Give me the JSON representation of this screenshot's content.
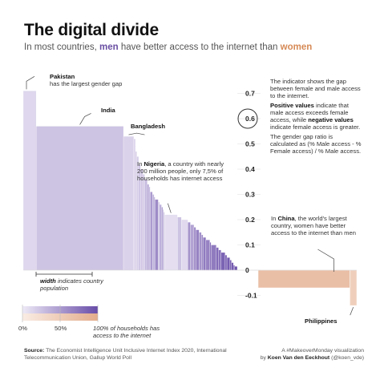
{
  "header": {
    "title": "The digital divide",
    "subtitle_pre": "In most countries, ",
    "subtitle_men": "men",
    "subtitle_mid": " have better access to the internet than ",
    "subtitle_women": "women"
  },
  "annotations": {
    "pakistan_name": "Pakistan",
    "pakistan_text": "has the largest gender gap",
    "india": "India",
    "bangladesh": "Bangladesh",
    "nigeria_pre": "In ",
    "nigeria_name": "Nigeria",
    "nigeria_post": ", a country with nearly 200 million people, only 7,5% of households has internet access",
    "china_pre": "In ",
    "china_name": "China",
    "china_post": ", the world's largest country, women have better access to the internet than men",
    "philippines": "Philippines",
    "width_bold": "width",
    "width_rest": " indicates country population"
  },
  "explain": {
    "p1": "The indicator shows the gap between female and male access to the internet.",
    "pos_label": "Positive values",
    "p2": " indicate that male access exceeds female access, while ",
    "neg_label": "negative values",
    "p3": " indicate female access is greater.",
    "p4": "The gender gap ratio is calculated as (% Male access - % Female access) / % Male access.",
    "example_value": "0.6"
  },
  "legend": {
    "label_0": "0%",
    "label_50": "50%",
    "label_100": "100% of households has access to the internet"
  },
  "footer": {
    "source_label": "Source:",
    "source_text": " The Economist Intelligence Unit Inclusive Internet Index 2020, International Telecommunication Union, Gallup World Poll",
    "credit_line1": "A #MakeoverMonday visualization",
    "credit_line2_pre": "by ",
    "credit_name": "Koen Van den Eeckhout",
    "credit_handle": " (@koen_vde)"
  },
  "colors": {
    "men": "#6a4fa3",
    "women": "#d68a56",
    "neg_fill": "#e8b596",
    "text": "#333333"
  },
  "chart_data": {
    "type": "bar",
    "encoding": "variable-width bars: height = gender gap ratio, width = population, color = % of households with internet access",
    "y_ticks": [
      "0.7",
      "0.6",
      "0.5",
      "0.4",
      "0.3",
      "0.2",
      "0.1",
      "0",
      "-0.1"
    ],
    "ylim": [
      -0.14,
      0.74
    ],
    "named_countries": [
      {
        "name": "Pakistan",
        "gap": 0.71,
        "population_m": 200,
        "access": 0.12
      },
      {
        "name": "India",
        "gap": 0.57,
        "population_m": 1350,
        "access": 0.25
      },
      {
        "name": "Bangladesh",
        "gap": 0.53,
        "population_m": 160,
        "access": 0.15
      },
      {
        "name": "Nigeria",
        "gap": 0.22,
        "population_m": 200,
        "access": 0.075
      },
      {
        "name": "China",
        "gap": -0.07,
        "population_m": 1400,
        "access": 0.7
      },
      {
        "name": "Philippines",
        "gap": -0.14,
        "population_m": 105,
        "access": 0.45
      }
    ],
    "other_countries": [
      {
        "gap": 0.52,
        "population_m": 25,
        "access": 0.15
      },
      {
        "gap": 0.47,
        "population_m": 20,
        "access": 0.2
      },
      {
        "gap": 0.45,
        "population_m": 30,
        "access": 0.18
      },
      {
        "gap": 0.42,
        "population_m": 28,
        "access": 0.25
      },
      {
        "gap": 0.4,
        "population_m": 35,
        "access": 0.22
      },
      {
        "gap": 0.38,
        "population_m": 30,
        "access": 0.2
      },
      {
        "gap": 0.36,
        "population_m": 40,
        "access": 0.3
      },
      {
        "gap": 0.34,
        "population_m": 25,
        "access": 0.45
      },
      {
        "gap": 0.33,
        "population_m": 20,
        "access": 0.3
      },
      {
        "gap": 0.31,
        "population_m": 35,
        "access": 0.5
      },
      {
        "gap": 0.3,
        "population_m": 25,
        "access": 0.35
      },
      {
        "gap": 0.29,
        "population_m": 15,
        "access": 0.55
      },
      {
        "gap": 0.28,
        "population_m": 50,
        "access": 0.6
      },
      {
        "gap": 0.27,
        "population_m": 20,
        "access": 0.25
      },
      {
        "gap": 0.26,
        "population_m": 30,
        "access": 0.4
      },
      {
        "gap": 0.25,
        "population_m": 20,
        "access": 0.5
      },
      {
        "gap": 0.24,
        "population_m": 15,
        "access": 0.3
      },
      {
        "gap": 0.23,
        "population_m": 12,
        "access": 0.45
      },
      {
        "gap": 0.21,
        "population_m": 60,
        "access": 0.25
      },
      {
        "gap": 0.2,
        "population_m": 100,
        "access": 0.1
      },
      {
        "gap": 0.19,
        "population_m": 40,
        "access": 0.55
      },
      {
        "gap": 0.18,
        "population_m": 55,
        "access": 0.45
      },
      {
        "gap": 0.17,
        "population_m": 30,
        "access": 0.6
      },
      {
        "gap": 0.16,
        "population_m": 50,
        "access": 0.65
      },
      {
        "gap": 0.15,
        "population_m": 35,
        "access": 0.55
      },
      {
        "gap": 0.14,
        "population_m": 25,
        "access": 0.6
      },
      {
        "gap": 0.13,
        "population_m": 45,
        "access": 0.7
      },
      {
        "gap": 0.12,
        "population_m": 60,
        "access": 0.65
      },
      {
        "gap": 0.11,
        "population_m": 20,
        "access": 0.75
      },
      {
        "gap": 0.1,
        "population_m": 80,
        "access": 0.7
      },
      {
        "gap": 0.09,
        "population_m": 35,
        "access": 0.8
      },
      {
        "gap": 0.08,
        "population_m": 40,
        "access": 0.75
      },
      {
        "gap": 0.07,
        "population_m": 60,
        "access": 0.85
      },
      {
        "gap": 0.06,
        "population_m": 30,
        "access": 0.8
      },
      {
        "gap": 0.05,
        "population_m": 45,
        "access": 0.9
      },
      {
        "gap": 0.04,
        "population_m": 25,
        "access": 0.85
      },
      {
        "gap": 0.03,
        "population_m": 30,
        "access": 0.9
      },
      {
        "gap": 0.02,
        "population_m": 20,
        "access": 0.95
      },
      {
        "gap": 0.015,
        "population_m": 40,
        "access": 0.95
      }
    ]
  }
}
